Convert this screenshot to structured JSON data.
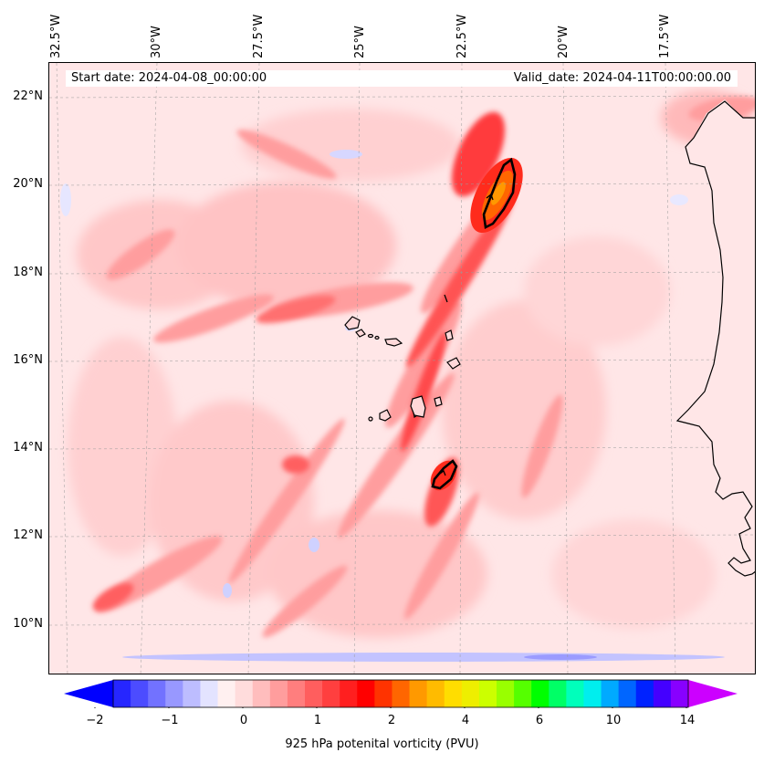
{
  "map": {
    "start_date": "Start date: 2024-04-08_00:00:00",
    "valid_date": "Valid_date: 2024-04-11T00:00:00.00",
    "lon_labels": [
      "32.5°W",
      "30°W",
      "27.5°W",
      "25°W",
      "22.5°W",
      "20°W",
      "17.5°W"
    ],
    "lat_labels": [
      "22°N",
      "20°N",
      "18°N",
      "16°N",
      "14°N",
      "12°N",
      "10°N"
    ],
    "features": [
      "coastline-west-africa",
      "cape-verde-islands",
      "pv-contours",
      "graticule"
    ]
  },
  "colorbar": {
    "label": "925 hPa potenital vorticity (PVU)",
    "ticks": [
      "−2",
      "−1",
      "0",
      "1",
      "2",
      "4",
      "6",
      "10",
      "14"
    ],
    "colors": [
      "#0000ff",
      "#2626ff",
      "#4c4cff",
      "#7272ff",
      "#9898ff",
      "#bdbdff",
      "#e3e3ff",
      "#fff0f0",
      "#ffdcdc",
      "#ffbdbd",
      "#ff9d9d",
      "#ff7e7e",
      "#ff5e5e",
      "#ff3f3f",
      "#ff1f1f",
      "#ff0000",
      "#ff3300",
      "#ff6600",
      "#ff9900",
      "#ffbb00",
      "#ffdd00",
      "#eeee00",
      "#ccff00",
      "#99ff00",
      "#55ff00",
      "#00ff00",
      "#00ff66",
      "#00ffbb",
      "#00eeee",
      "#00aaff",
      "#0066ff",
      "#0022ff",
      "#4400ff",
      "#8800ff",
      "#cc00ff"
    ],
    "extend": "both"
  }
}
